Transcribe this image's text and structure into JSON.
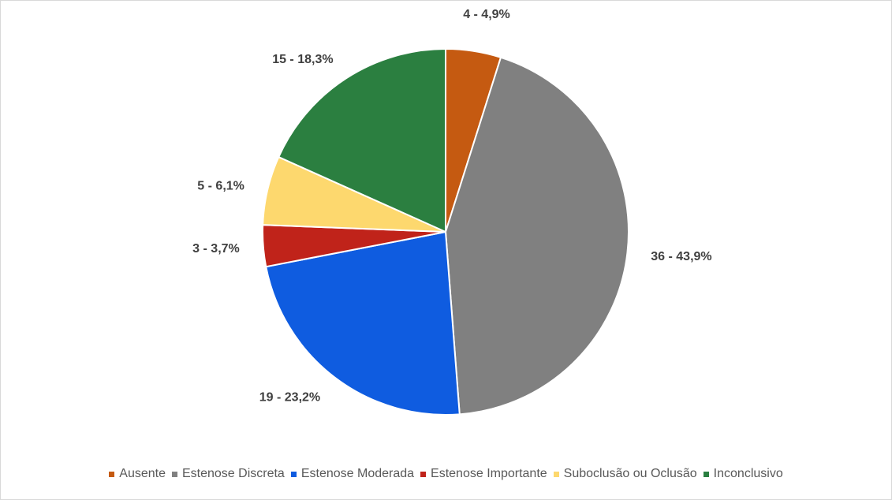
{
  "chart_data": {
    "type": "pie",
    "title": "",
    "categories": [
      "Ausente",
      "Estenose Discreta",
      "Estenose Moderada",
      "Estenose Importante",
      "Suboclusão ou Oclusão",
      "Inconclusivo"
    ],
    "values": [
      4,
      36,
      19,
      3,
      5,
      15
    ],
    "percentages": [
      4.9,
      43.9,
      23.2,
      3.7,
      6.1,
      18.3
    ],
    "data_labels": [
      "4 - 4,9%",
      "36 - 43,9%",
      "19 - 23,2%",
      "3 - 3,7%",
      "5 - 6,1%",
      "15 - 18,3%"
    ],
    "colors": [
      "#c55a11",
      "#808080",
      "#0f5ce0",
      "#c0231a",
      "#fdd86e",
      "#2b7f40"
    ],
    "legend_position": "bottom",
    "start_angle": "12 o'clock",
    "direction": "clockwise"
  }
}
